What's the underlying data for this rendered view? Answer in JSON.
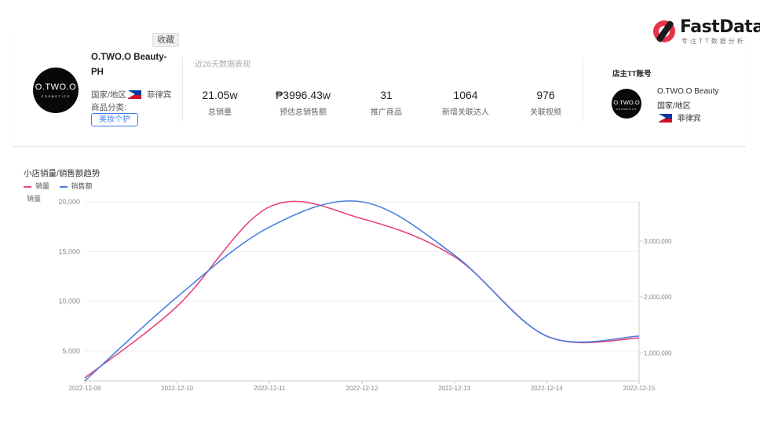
{
  "logo": {
    "name": "FastData",
    "slogan": "专注TT数据分析",
    "icon": "fastdata-logo-icon"
  },
  "shop": {
    "favorite_label": "收藏",
    "avatar_text": "O.TWO.O",
    "avatar_subtext": "COSMETICS",
    "name": "O.TWO.O Beauty-PH",
    "region_label": "国家/地区",
    "country": "菲律宾",
    "category_label": "商品分类:",
    "category_tag": "美妆个护"
  },
  "stats": {
    "period_label": "近28天数据表现",
    "items": [
      {
        "value": "21.05w",
        "label": "总销量"
      },
      {
        "value": "₱3996.43w",
        "label": "预估总销售额"
      },
      {
        "value": "31",
        "label": "推广商品"
      },
      {
        "value": "1064",
        "label": "新增关联达人"
      },
      {
        "value": "976",
        "label": "关联视频"
      }
    ]
  },
  "owner": {
    "title": "店主TT账号",
    "avatar_text": "O.TWO.O",
    "avatar_subtext": "COSMETICS",
    "name": "O.TWO.O Beauty",
    "region_label": "国家/地区",
    "country": "菲律宾"
  },
  "colors": {
    "sales": "#e8457a",
    "revenue": "#4a80e0",
    "grid": "#eeeeee",
    "axis_text": "#888888"
  },
  "chart_data": {
    "type": "line",
    "title": "小店销量/销售额趋势",
    "ylabel": "销量",
    "x": [
      "2022-12-09",
      "2022-12-10",
      "2022-12-11",
      "2022-12-12",
      "2022-12-13",
      "2022-12-14",
      "2022-12-15"
    ],
    "y_left": {
      "range": [
        2000,
        20000
      ],
      "ticks": [
        5000,
        10000,
        15000,
        20000
      ],
      "tick_labels": [
        "5,000",
        "10,000",
        "15,000",
        "20,000"
      ]
    },
    "y_right": {
      "range": [
        500000,
        3700000
      ],
      "ticks": [
        1000000,
        2000000,
        3000000
      ],
      "tick_labels": [
        "1,000,000",
        "2,000,000",
        "3,000,000"
      ]
    },
    "series": [
      {
        "name": "销量",
        "axis": "left",
        "values": [
          2300,
          9500,
          19500,
          18300,
          14500,
          6500,
          6300
        ]
      },
      {
        "name": "销售额",
        "axis": "right",
        "values": [
          500000,
          2000000,
          3250000,
          3700000,
          2750000,
          1300000,
          1300000
        ]
      }
    ]
  }
}
